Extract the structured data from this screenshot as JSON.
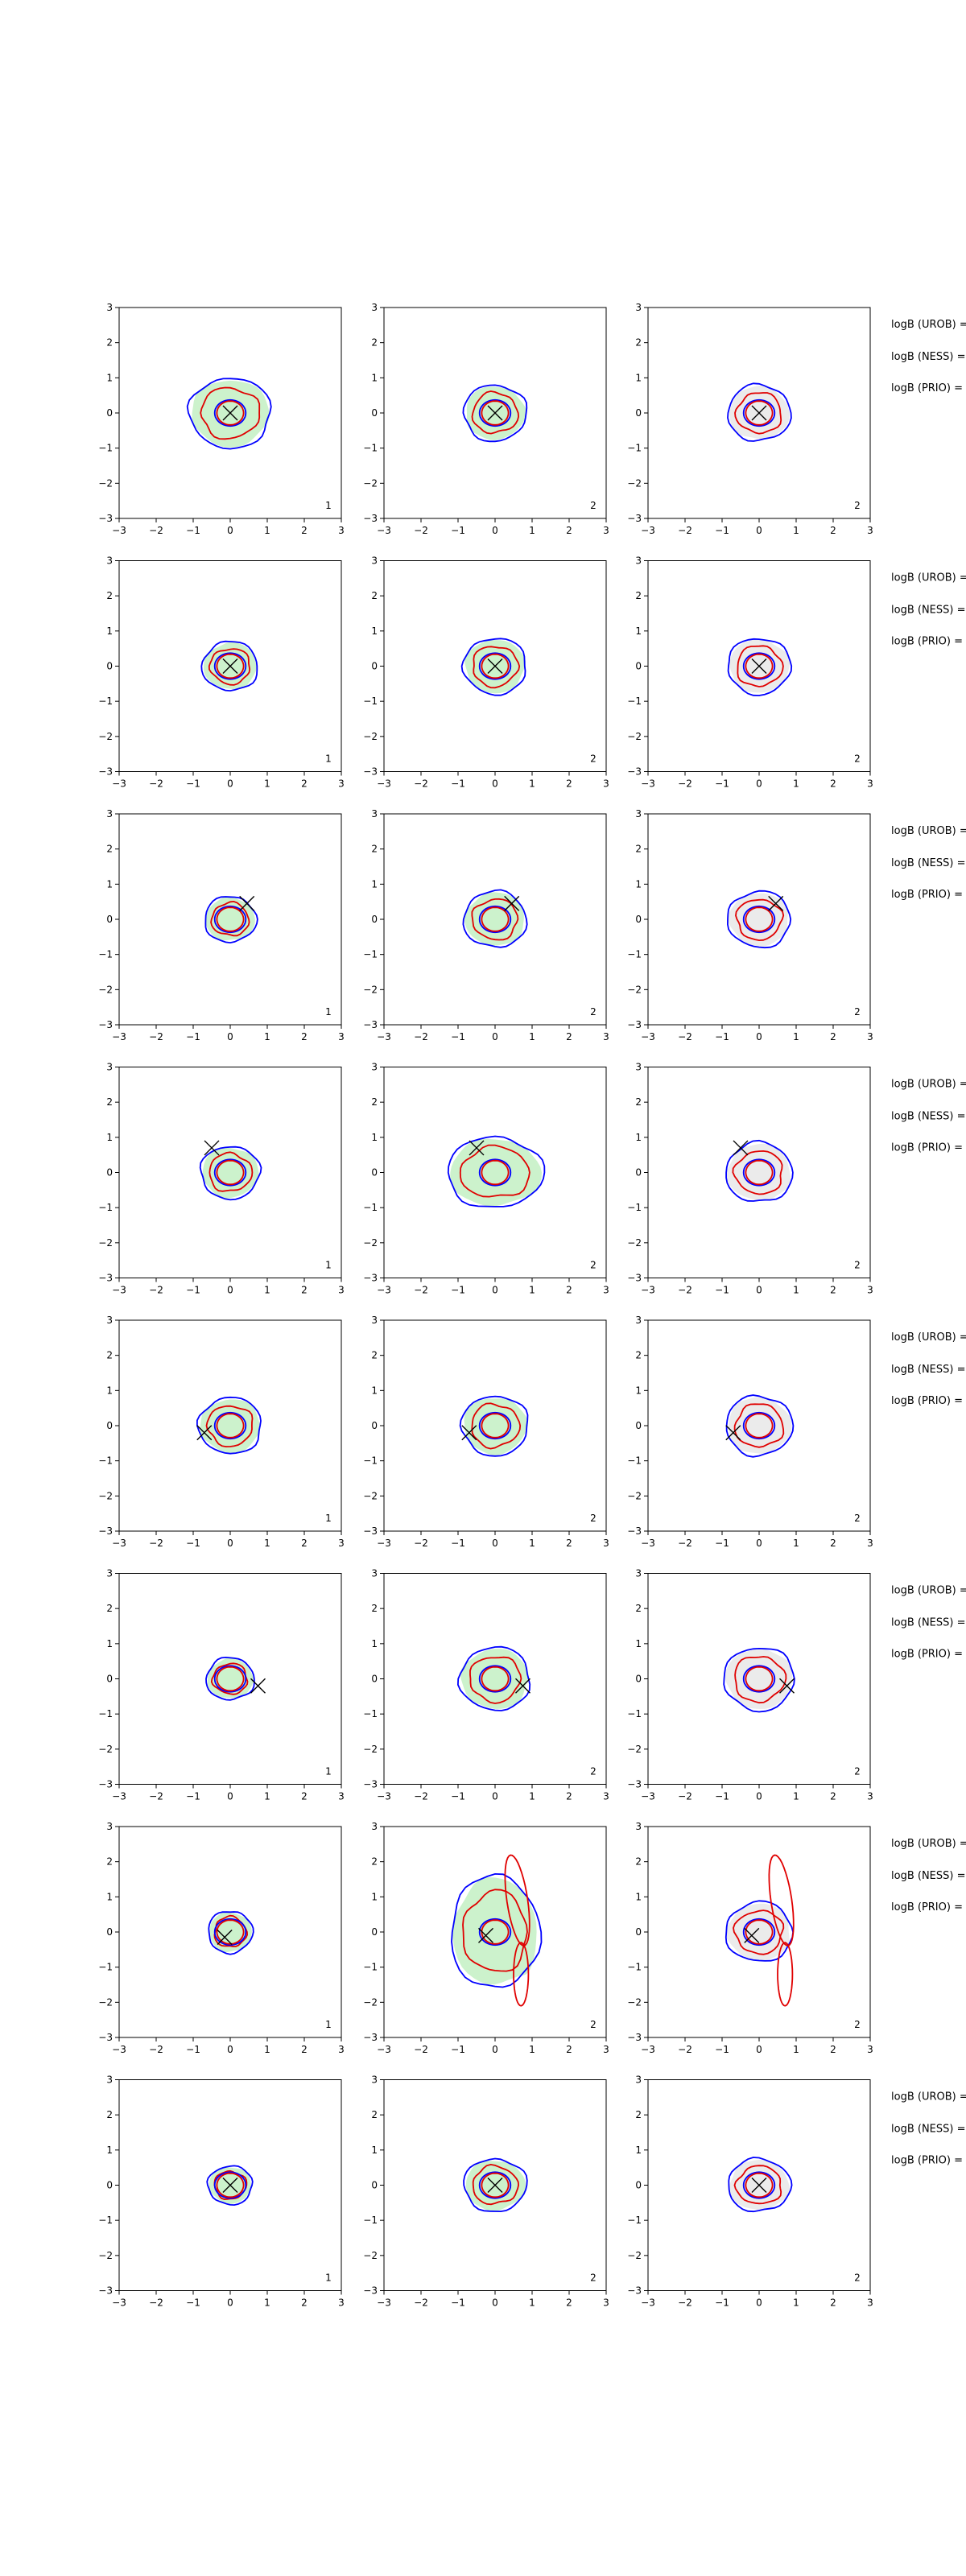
{
  "colors": {
    "outer_contour": "#0000ff",
    "inner_contour": "#e00000",
    "green_fill": "#ccf2cc",
    "grey_fill": "#ebebeb",
    "marker": "#000000",
    "axes": "#000000"
  },
  "axis": {
    "xlim": [
      -3,
      3
    ],
    "ylim": [
      -3,
      3
    ],
    "ticks": [
      -3,
      -2,
      -1,
      0,
      1,
      2,
      3
    ],
    "tick_labels": [
      "−3",
      "−2",
      "−1",
      "0",
      "1",
      "2",
      "3"
    ]
  },
  "side_labels": [
    "logB (UROB) =",
    "logB (NESS) =",
    "logB (PRIO) ="
  ],
  "chart_data": {
    "type": "scatter",
    "description_note": "8x3 grid of contour density panels; blue = outer contours, red = inner contours, shaded background density, X = true parameter location",
    "panels": [
      {
        "row": 0,
        "col": 0,
        "marker": [
          0.0,
          0.0
        ],
        "index_label": "1",
        "fill": "green",
        "rx": 1.1,
        "ry": 1.0
      },
      {
        "row": 0,
        "col": 1,
        "marker": [
          0.0,
          0.0
        ],
        "index_label": "2",
        "fill": "green",
        "rx": 0.85,
        "ry": 0.8
      },
      {
        "row": 0,
        "col": 2,
        "marker": [
          0.0,
          0.0
        ],
        "index_label": "2",
        "fill": "grey",
        "rx": 0.85,
        "ry": 0.8
      },
      {
        "row": 1,
        "col": 0,
        "marker": [
          0.0,
          0.0
        ],
        "index_label": "1",
        "fill": "green",
        "rx": 0.75,
        "ry": 0.7
      },
      {
        "row": 1,
        "col": 1,
        "marker": [
          0.0,
          0.0
        ],
        "index_label": "2",
        "fill": "green",
        "rx": 0.85,
        "ry": 0.8
      },
      {
        "row": 1,
        "col": 2,
        "marker": [
          0.0,
          0.0
        ],
        "index_label": "2",
        "fill": "grey",
        "rx": 0.85,
        "ry": 0.8
      },
      {
        "row": 2,
        "col": 0,
        "marker": [
          0.45,
          0.45
        ],
        "index_label": "1",
        "fill": "green",
        "rx": 0.7,
        "ry": 0.65
      },
      {
        "row": 2,
        "col": 1,
        "marker": [
          0.45,
          0.45
        ],
        "index_label": "2",
        "fill": "green",
        "rx": 0.85,
        "ry": 0.8
      },
      {
        "row": 2,
        "col": 2,
        "marker": [
          0.45,
          0.45
        ],
        "index_label": "2",
        "fill": "grey",
        "rx": 0.85,
        "ry": 0.8
      },
      {
        "row": 3,
        "col": 0,
        "marker": [
          -0.5,
          0.7
        ],
        "index_label": "1",
        "fill": "green",
        "rx": 0.8,
        "ry": 0.75
      },
      {
        "row": 3,
        "col": 1,
        "marker": [
          -0.5,
          0.7
        ],
        "index_label": "2",
        "fill": "green",
        "rx": 1.3,
        "ry": 1.0
      },
      {
        "row": 3,
        "col": 2,
        "marker": [
          -0.5,
          0.7
        ],
        "index_label": "2",
        "fill": "grey",
        "rx": 0.9,
        "ry": 0.85
      },
      {
        "row": 4,
        "col": 0,
        "marker": [
          -0.7,
          -0.2
        ],
        "index_label": "1",
        "fill": "green",
        "rx": 0.85,
        "ry": 0.8
      },
      {
        "row": 4,
        "col": 1,
        "marker": [
          -0.7,
          -0.2
        ],
        "index_label": "2",
        "fill": "green",
        "rx": 0.9,
        "ry": 0.85
      },
      {
        "row": 4,
        "col": 2,
        "marker": [
          -0.7,
          -0.2
        ],
        "index_label": "2",
        "fill": "grey",
        "rx": 0.9,
        "ry": 0.85
      },
      {
        "row": 5,
        "col": 0,
        "marker": [
          0.75,
          -0.2
        ],
        "index_label": "1",
        "fill": "green",
        "rx": 0.65,
        "ry": 0.6
      },
      {
        "row": 5,
        "col": 1,
        "marker": [
          0.75,
          -0.2
        ],
        "index_label": "2",
        "fill": "green",
        "rx": 0.95,
        "ry": 0.9
      },
      {
        "row": 5,
        "col": 2,
        "marker": [
          0.75,
          -0.2
        ],
        "index_label": "2",
        "fill": "grey",
        "rx": 0.95,
        "ry": 0.9
      },
      {
        "row": 6,
        "col": 0,
        "marker": [
          -0.15,
          -0.15
        ],
        "index_label": "1",
        "fill": "green",
        "rx": 0.6,
        "ry": 0.6
      },
      {
        "row": 6,
        "col": 1,
        "marker": [
          -0.25,
          -0.1
        ],
        "index_label": "2",
        "fill": "green",
        "rx": 1.2,
        "ry": 1.6,
        "tail": true
      },
      {
        "row": 6,
        "col": 2,
        "marker": [
          -0.2,
          -0.1
        ],
        "index_label": "2",
        "fill": "grey",
        "rx": 0.9,
        "ry": 0.85,
        "tail": true
      },
      {
        "row": 7,
        "col": 0,
        "marker": [
          0.0,
          0.0
        ],
        "index_label": "1",
        "fill": "green",
        "rx": 0.6,
        "ry": 0.55
      },
      {
        "row": 7,
        "col": 1,
        "marker": [
          0.0,
          0.0
        ],
        "index_label": "2",
        "fill": "green",
        "rx": 0.85,
        "ry": 0.75
      },
      {
        "row": 7,
        "col": 2,
        "marker": [
          0.0,
          0.0
        ],
        "index_label": "2",
        "fill": "grey",
        "rx": 0.85,
        "ry": 0.75
      }
    ]
  }
}
